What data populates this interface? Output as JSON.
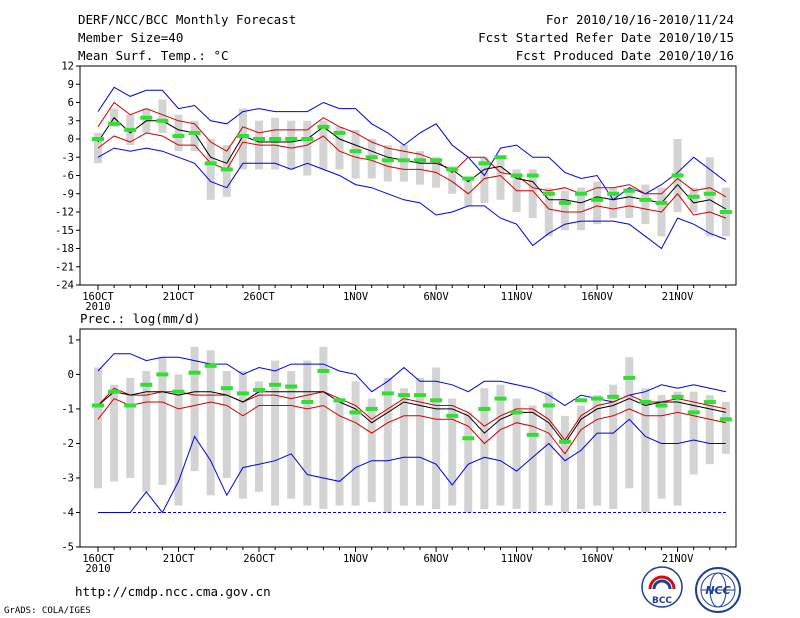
{
  "header": {
    "title": "DERF/NCC/BCC Monthly Forecast",
    "member_size": "Member Size=40",
    "variable": "Mean Surf. Temp.: °C",
    "period": "For 2010/10/16-2010/11/24",
    "started": "Fcst Started Refer Date 2010/10/15",
    "produced": "Fcst Produced Date 2010/10/16"
  },
  "footer": {
    "url": "http://cmdp.ncc.cma.gov.cn",
    "grads": "GrADS: COLA/IGES",
    "logo_bcc": "BCC",
    "logo_ncc": "NCC"
  },
  "colors": {
    "box": "#d3d3d3",
    "mean": "#000000",
    "band": "#d00000",
    "range": "#0000e0",
    "obs": "#33dd33",
    "floor": "#0000e0"
  },
  "chart_data": [
    {
      "type": "line",
      "title": "Mean Surf. Temp.: °C",
      "xlabel": "",
      "ylabel": "°C",
      "x_tick_labels": [
        "16OCT",
        "21OCT",
        "26OCT",
        "1NOV",
        "6NOV",
        "11NOV",
        "16NOV",
        "21NOV"
      ],
      "x_tick_days": [
        0,
        5,
        10,
        16,
        21,
        26,
        31,
        36
      ],
      "x_sublabel": "2010",
      "yticks": [
        12,
        9,
        6,
        3,
        0,
        -3,
        -6,
        -9,
        -12,
        -15,
        -18,
        -21,
        -24
      ],
      "ylim": [
        -24,
        12
      ],
      "days": [
        0,
        1,
        2,
        3,
        4,
        5,
        6,
        7,
        8,
        9,
        10,
        11,
        12,
        13,
        14,
        15,
        16,
        17,
        18,
        19,
        20,
        21,
        22,
        23,
        24,
        25,
        26,
        27,
        28,
        29,
        30,
        31,
        32,
        33,
        34,
        35,
        36,
        37,
        38,
        39
      ],
      "series": [
        {
          "name": "max",
          "values": [
            4.5,
            8.5,
            7,
            8,
            8,
            5,
            5.5,
            3,
            2.5,
            4.5,
            5,
            4.5,
            4.5,
            4.5,
            6,
            5,
            5,
            2.5,
            1,
            -1,
            1,
            2.5,
            -1,
            -3,
            -6,
            -1.5,
            -1,
            -3,
            -3,
            -5.5,
            -6.5,
            -6,
            -10,
            -8,
            -9,
            -7.5,
            -5.5,
            -3,
            -5,
            -7
          ]
        },
        {
          "name": "band_upper",
          "values": [
            2,
            6,
            4,
            5,
            4,
            3,
            2.5,
            -0.5,
            -2,
            2,
            1,
            1.5,
            1.5,
            1.5,
            3.5,
            2,
            1,
            -0.5,
            -1.5,
            -2,
            -2.5,
            -3.5,
            -5.5,
            -3,
            -3,
            -5.5,
            -6,
            -8,
            -8.5,
            -8,
            -9,
            -8,
            -8,
            -7.5,
            -9,
            -9,
            -6.5,
            -8.5,
            -8,
            -9.5
          ]
        },
        {
          "name": "mean",
          "values": [
            -0.5,
            3.5,
            1,
            3,
            3,
            1.5,
            1,
            -3,
            -4,
            0.5,
            -0.5,
            -0.5,
            -0.5,
            0,
            2,
            0,
            -1,
            -2,
            -3,
            -3.5,
            -4,
            -4,
            -5,
            -7,
            -5,
            -4.5,
            -6.5,
            -7,
            -10,
            -10,
            -10.5,
            -9.5,
            -10,
            -9.5,
            -10,
            -10.5,
            -7.5,
            -10.5,
            -10,
            -11.5
          ]
        },
        {
          "name": "band_lower",
          "values": [
            -1.5,
            0.5,
            -0.5,
            1,
            0.5,
            -1,
            -1,
            -4,
            -5,
            -0.5,
            -1,
            -1,
            -1.5,
            -1,
            0.5,
            -2,
            -3,
            -3.5,
            -4.5,
            -5,
            -5,
            -5.5,
            -7,
            -9,
            -6.5,
            -6,
            -8.5,
            -8.5,
            -11.5,
            -12,
            -12,
            -11,
            -11.5,
            -11,
            -11.5,
            -12,
            -9,
            -12.5,
            -12,
            -13
          ]
        },
        {
          "name": "min",
          "values": [
            -3,
            -1.5,
            -2,
            -1.5,
            -2,
            -3,
            -4,
            -7,
            -8,
            -4,
            -4,
            -4,
            -5,
            -4,
            -5,
            -6,
            -7.5,
            -8,
            -9,
            -10,
            -10.5,
            -12.5,
            -12,
            -11,
            -11,
            -13,
            -14,
            -17.5,
            -15.5,
            -14,
            -13.5,
            -13.5,
            -13.5,
            -14,
            -16,
            -18,
            -13,
            -14,
            -15.5,
            -16.5
          ]
        },
        {
          "name": "box_top",
          "values": [
            1,
            5,
            4,
            5,
            6.5,
            4,
            3,
            0,
            -1,
            5,
            3,
            3.5,
            3,
            3,
            3,
            2,
            1.5,
            0,
            -1,
            -1,
            -2,
            -3,
            -4.5,
            -6.5,
            -3,
            -3,
            -5,
            -5,
            -8,
            -8.5,
            -8,
            -7,
            -8,
            -8,
            -7.5,
            -8,
            0,
            -8,
            -3,
            -8
          ]
        },
        {
          "name": "box_bottom",
          "values": [
            -4,
            2,
            -1,
            1,
            1,
            -2,
            -2,
            -10,
            -9.5,
            -5,
            -5,
            -5,
            -5,
            -6,
            -5,
            -5,
            -6.5,
            -6.5,
            -7,
            -7,
            -7.5,
            -8,
            -9,
            -11,
            -10.5,
            -10,
            -12,
            -13,
            -16,
            -15,
            -15,
            -14,
            -13,
            -13,
            -14,
            -16,
            -12,
            -12,
            -16,
            -16
          ]
        },
        {
          "name": "observed",
          "values": [
            0,
            2.5,
            1.5,
            3.5,
            3,
            0.5,
            1,
            -4,
            -5,
            0.5,
            0,
            0,
            0,
            0,
            2,
            1,
            -2,
            -3,
            -3.5,
            -3.5,
            -3.5,
            -3.5,
            -5,
            -6.5,
            -4,
            -3,
            -6,
            -6,
            -9,
            -10.5,
            -9,
            -10,
            -9,
            -8.5,
            -10,
            -10.5,
            -6,
            -9.5,
            -9,
            -12
          ]
        }
      ]
    },
    {
      "type": "line",
      "title": "Prec.: log(mm/d)",
      "xlabel": "",
      "ylabel": "log(mm/d)",
      "x_tick_labels": [
        "16OCT",
        "21OCT",
        "26OCT",
        "1NOV",
        "6NOV",
        "11NOV",
        "16NOV",
        "21NOV"
      ],
      "x_tick_days": [
        0,
        5,
        10,
        16,
        21,
        26,
        31,
        36
      ],
      "x_sublabel": "2010",
      "yticks": [
        1,
        0,
        -1,
        -2,
        -3,
        -4,
        -5
      ],
      "ylim": [
        -5,
        1.2
      ],
      "floor_value": -4,
      "days": [
        0,
        1,
        2,
        3,
        4,
        5,
        6,
        7,
        8,
        9,
        10,
        11,
        12,
        13,
        14,
        15,
        16,
        17,
        18,
        19,
        20,
        21,
        22,
        23,
        24,
        25,
        26,
        27,
        28,
        29,
        30,
        31,
        32,
        33,
        34,
        35,
        36,
        37,
        38,
        39
      ],
      "series": [
        {
          "name": "max",
          "values": [
            0.1,
            0.6,
            0.6,
            0.4,
            0.5,
            0.5,
            0.4,
            0.3,
            0.3,
            0,
            0.2,
            0.1,
            0.3,
            0.3,
            0.3,
            0.1,
            0,
            -0.5,
            -0.2,
            0.2,
            -0.2,
            -0.2,
            -0.3,
            -0.5,
            -0.2,
            -0.2,
            -0.3,
            -0.4,
            -0.6,
            -0.9,
            -0.6,
            -0.7,
            -0.8,
            -0.6,
            -0.5,
            -0.3,
            -0.4,
            -0.3,
            -0.4,
            -0.5
          ]
        },
        {
          "name": "band_upper",
          "values": [
            -0.9,
            -0.4,
            -0.6,
            -0.6,
            -0.5,
            -0.5,
            -0.6,
            -0.6,
            -0.6,
            -0.8,
            -0.6,
            -0.6,
            -0.7,
            -0.6,
            -0.5,
            -0.7,
            -0.9,
            -1.3,
            -1,
            -0.7,
            -0.8,
            -0.9,
            -0.9,
            -1.1,
            -1.5,
            -1.2,
            -1.0,
            -1.0,
            -1.3,
            -1.9,
            -1.2,
            -0.9,
            -0.8,
            -0.6,
            -0.8,
            -0.8,
            -0.7,
            -0.8,
            -0.9,
            -1.0
          ]
        },
        {
          "name": "mean",
          "values": [
            -0.9,
            -0.5,
            -0.6,
            -0.5,
            -0.5,
            -0.6,
            -0.5,
            -0.5,
            -0.6,
            -0.8,
            -0.5,
            -0.5,
            -0.5,
            -0.5,
            -0.5,
            -0.8,
            -1,
            -1.4,
            -1.1,
            -0.8,
            -0.9,
            -1,
            -1,
            -1.2,
            -1.7,
            -1.3,
            -1.1,
            -1.1,
            -1.4,
            -2,
            -1.3,
            -1,
            -0.9,
            -0.7,
            -0.9,
            -0.8,
            -0.8,
            -0.9,
            -1,
            -1.1
          ]
        },
        {
          "name": "band_lower",
          "values": [
            -1.3,
            -0.7,
            -0.9,
            -0.8,
            -0.8,
            -1.0,
            -0.9,
            -0.8,
            -0.9,
            -1.2,
            -0.9,
            -0.9,
            -0.9,
            -1.0,
            -0.9,
            -1.2,
            -1.4,
            -1.7,
            -1.4,
            -1.2,
            -1.2,
            -1.3,
            -1.3,
            -1.5,
            -2.0,
            -1.6,
            -1.4,
            -1.5,
            -1.7,
            -2.3,
            -1.6,
            -1.3,
            -1.2,
            -1.0,
            -1.2,
            -1.2,
            -1.1,
            -1.2,
            -1.3,
            -1.4
          ]
        },
        {
          "name": "min",
          "values": [
            -4,
            -4,
            -4,
            -3.4,
            -4,
            -3.1,
            -1.8,
            -2.5,
            -3.5,
            -2.7,
            -2.6,
            -2.5,
            -2.3,
            -2.9,
            -3,
            -3.1,
            -2.7,
            -2.5,
            -2.5,
            -2.4,
            -2.4,
            -2.6,
            -3.2,
            -2.6,
            -2.4,
            -2.5,
            -2.8,
            -2.4,
            -2.0,
            -2.5,
            -2.2,
            -1.7,
            -1.7,
            -1.3,
            -1.8,
            -2.0,
            -2.0,
            -1.9,
            -2.0,
            -2.0
          ]
        },
        {
          "name": "box_top",
          "values": [
            0.2,
            -0.3,
            -0.1,
            0.1,
            0.5,
            0,
            0.8,
            0.7,
            0.1,
            0.1,
            -0.2,
            0.4,
            0.1,
            0.4,
            0.8,
            -0.7,
            -0.2,
            -0.7,
            -0.1,
            -0.4,
            -0.1,
            0.2,
            -0.7,
            -1.1,
            -0.4,
            -0.3,
            -0.7,
            -0.9,
            -0.5,
            -1.2,
            -0.9,
            -0.6,
            -0.3,
            0.5,
            -0.4,
            -0.6,
            -0.5,
            -0.5,
            -0.6,
            -0.8
          ]
        },
        {
          "name": "box_bottom",
          "values": [
            -3.3,
            -3.1,
            -3.0,
            -3.4,
            -3.2,
            -3.8,
            -2.8,
            -3.5,
            -3.0,
            -3.6,
            -3.4,
            -3.8,
            -3.6,
            -3.8,
            -3.9,
            -3.8,
            -3.8,
            -3.7,
            -4.0,
            -3.8,
            -3.8,
            -3.9,
            -3.8,
            -4.0,
            -3.9,
            -3.8,
            -3.9,
            -4.0,
            -3.8,
            -4.0,
            -3.9,
            -3.8,
            -3.9,
            -3.3,
            -4.0,
            -3.6,
            -3.8,
            -2.9,
            -2.6,
            -2.3
          ]
        },
        {
          "name": "observed",
          "values": [
            -0.9,
            -0.5,
            -0.9,
            -0.3,
            0,
            -0.5,
            0.05,
            0.25,
            -0.4,
            -0.55,
            -0.45,
            -0.3,
            -0.35,
            -0.8,
            0.1,
            -0.75,
            -1.1,
            -1.0,
            -0.55,
            -0.6,
            -0.6,
            -0.75,
            -1.2,
            -1.85,
            -1.0,
            -0.7,
            -1.1,
            -1.75,
            -0.9,
            -1.95,
            -0.75,
            -0.7,
            -0.65,
            -0.1,
            -0.8,
            -0.9,
            -0.65,
            -1.1,
            -0.8,
            -1.3
          ]
        }
      ]
    }
  ]
}
